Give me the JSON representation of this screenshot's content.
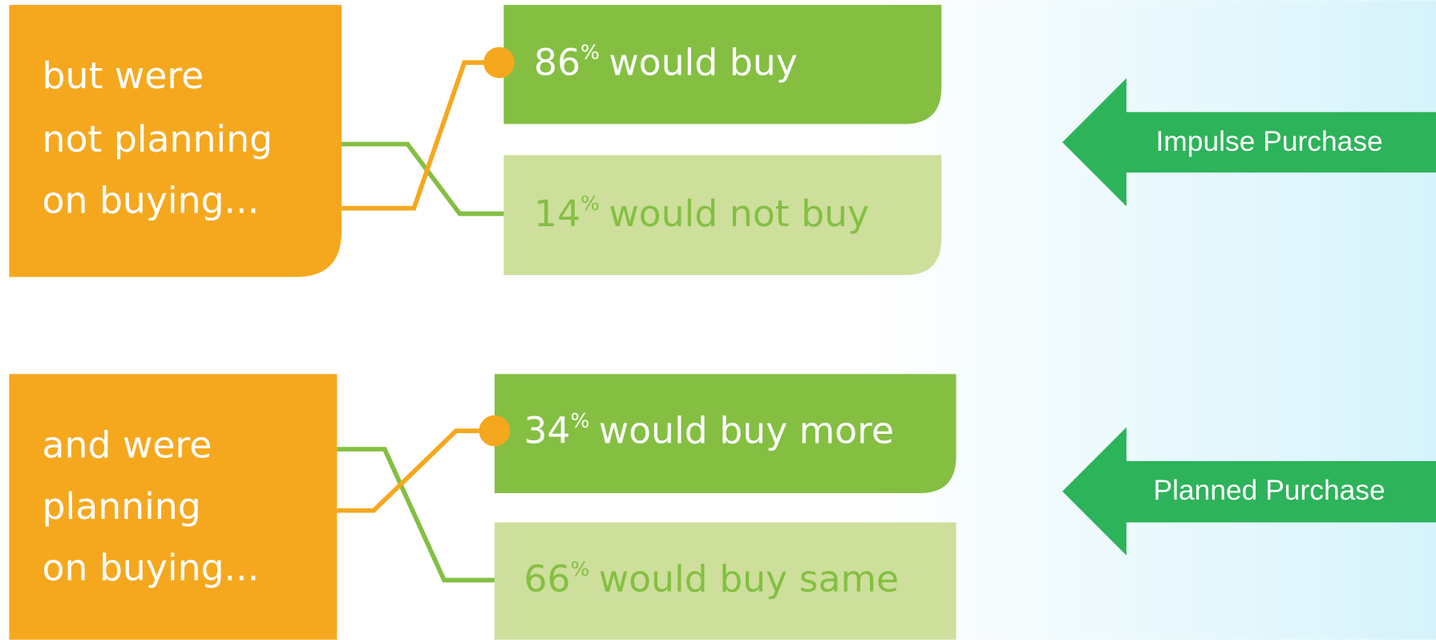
{
  "groups": [
    {
      "label": [
        "but were",
        "not planning",
        "on buying..."
      ],
      "outcomes": [
        {
          "number": "86",
          "suffix": "%",
          "text": "would buy"
        },
        {
          "number": "14",
          "suffix": "%",
          "text": "would not buy"
        }
      ],
      "arrow": "Impulse Purchase"
    },
    {
      "label": [
        "and were",
        "planning",
        "on buying..."
      ],
      "outcomes": [
        {
          "number": "34",
          "suffix": "%",
          "text": "would buy more"
        },
        {
          "number": "66",
          "suffix": "%",
          "text": "would buy same"
        }
      ],
      "arrow": "Planned Purchase"
    }
  ]
}
